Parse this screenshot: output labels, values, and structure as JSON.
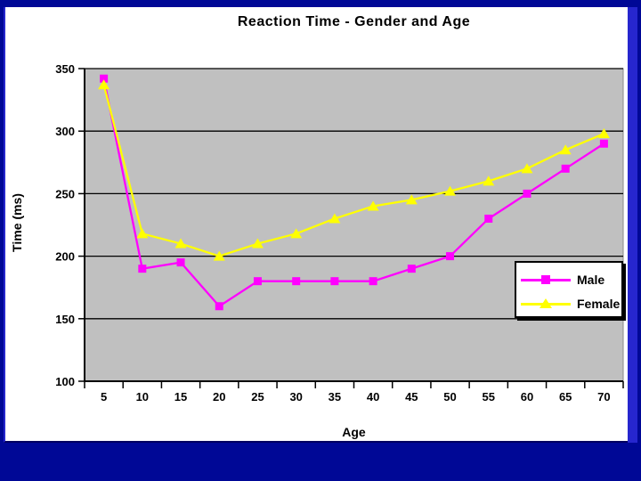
{
  "slide": {
    "background_color": "#000896",
    "accent_border_color": "#2626CE"
  },
  "chart_data": {
    "type": "line",
    "title": "Reaction Time - Gender and Age",
    "xlabel": "Age",
    "ylabel": "Time (ms)",
    "categories": [
      5,
      10,
      15,
      20,
      25,
      30,
      35,
      40,
      45,
      50,
      55,
      60,
      65,
      70
    ],
    "series": [
      {
        "name": "Male",
        "color": "#FF00FF",
        "marker": "square",
        "values": [
          342,
          190,
          195,
          160,
          180,
          180,
          180,
          180,
          190,
          200,
          230,
          250,
          270,
          290
        ]
      },
      {
        "name": "Female",
        "color": "#FFFF00",
        "marker": "triangle",
        "values": [
          337,
          218,
          210,
          200,
          210,
          218,
          230,
          240,
          245,
          252,
          260,
          270,
          285,
          298
        ]
      }
    ],
    "ylim": [
      100,
      350
    ],
    "ytick_step": 50,
    "grid": true,
    "plot_bg": "#C0C0C0",
    "gridline_color": "#000000",
    "axis_color": "#000000",
    "legend_position": "inside-bottom-right"
  }
}
